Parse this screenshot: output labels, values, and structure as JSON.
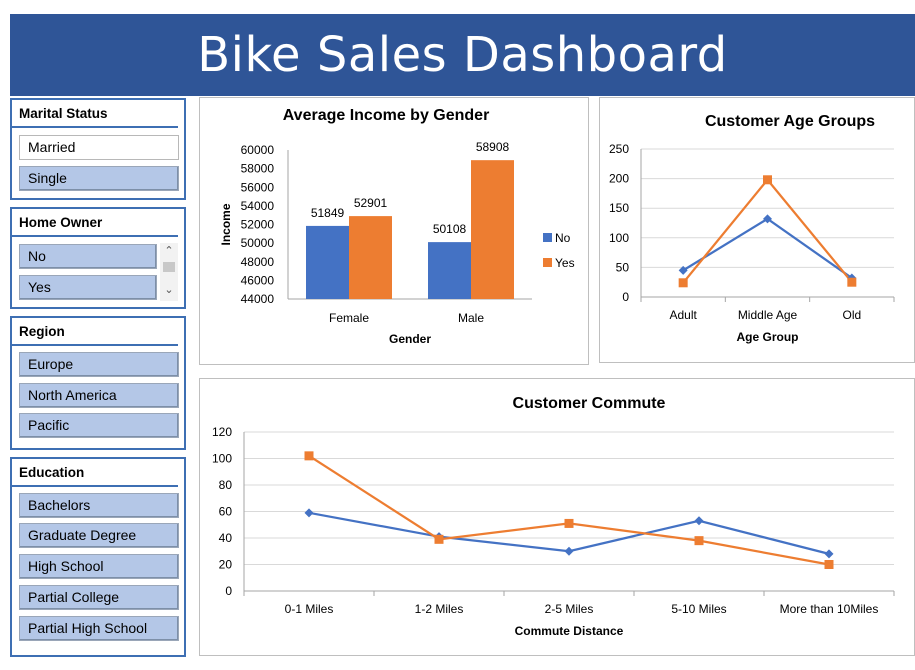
{
  "title": "Bike Sales Dashboard",
  "slicers": {
    "marital": {
      "title": "Marital Status",
      "items": [
        "Married",
        "Single"
      ]
    },
    "home": {
      "title": "Home Owner",
      "items": [
        "No",
        "Yes"
      ]
    },
    "region": {
      "title": "Region",
      "items": [
        "Europe",
        "North America",
        "Pacific"
      ]
    },
    "education": {
      "title": "Education",
      "items": [
        "Bachelors",
        "Graduate Degree",
        "High School",
        "Partial College",
        "Partial High School"
      ]
    }
  },
  "colors": {
    "no": "#4472c4",
    "yes": "#ed7d31",
    "banner": "#2f5597",
    "slicer": "#b4c7e7"
  },
  "chart_data": [
    {
      "type": "bar",
      "title": "Average Income by Gender",
      "xlabel": "Gender",
      "ylabel": "Income",
      "categories": [
        "Female",
        "Male"
      ],
      "ylim": [
        44000,
        60000
      ],
      "yticks": [
        "60000",
        "58000",
        "56000",
        "54000",
        "52000",
        "50000",
        "48000",
        "46000",
        "44000"
      ],
      "series": [
        {
          "name": "No",
          "values": [
            51849,
            50108
          ],
          "labels": [
            "51849",
            "50108"
          ]
        },
        {
          "name": "Yes",
          "values": [
            52901,
            58908
          ],
          "labels": [
            "52901",
            "58908"
          ]
        }
      ],
      "legend": "right"
    },
    {
      "type": "line",
      "title": "Customer Age Groups",
      "xlabel": "Age Group",
      "categories": [
        "Adult",
        "Middle Age",
        "Old"
      ],
      "ylim": [
        0,
        250
      ],
      "yticks": [
        "250",
        "200",
        "150",
        "100",
        "50",
        "0"
      ],
      "series": [
        {
          "name": "No",
          "values": [
            45,
            132,
            32
          ]
        },
        {
          "name": "Yes",
          "values": [
            24,
            198,
            25
          ]
        }
      ]
    },
    {
      "type": "line",
      "title": "Customer Commute",
      "xlabel": "Commute Distance",
      "categories": [
        "0-1 Miles",
        "1-2 Miles",
        "2-5 Miles",
        "5-10 Miles",
        "More than 10Miles"
      ],
      "ylim": [
        0,
        120
      ],
      "yticks": [
        "120",
        "100",
        "80",
        "60",
        "40",
        "20",
        "0"
      ],
      "series": [
        {
          "name": "No",
          "values": [
            59,
            41,
            30,
            53,
            28
          ]
        },
        {
          "name": "Yes",
          "values": [
            102,
            39,
            51,
            38,
            20
          ]
        }
      ]
    }
  ]
}
